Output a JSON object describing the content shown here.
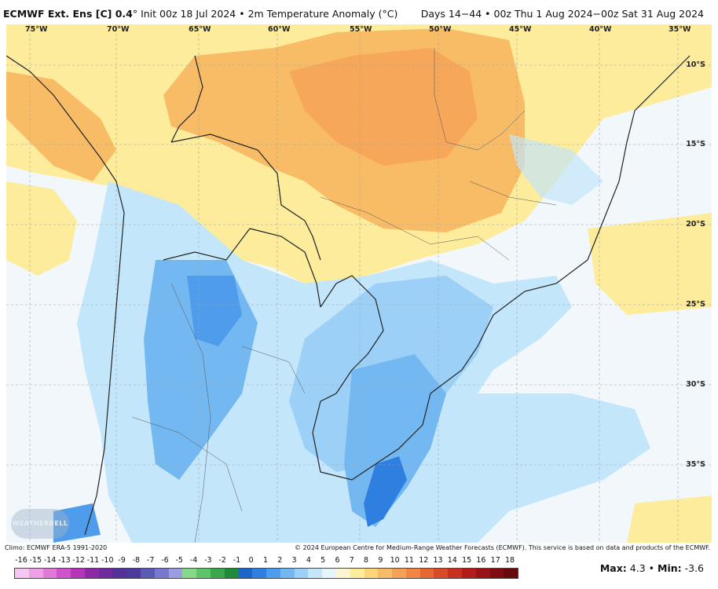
{
  "header": {
    "model": "ECMWF Ext. Ens [C] 0.4",
    "degree": "°",
    "init": "Init 00z 18 Jul 2024",
    "sep": "•",
    "field": "2m Temperature Anomaly (°C)",
    "range": "Days 14−44 • 00z Thu 1 Aug 2024−00z Sat 31 Aug 2024"
  },
  "map": {
    "lon_labels": [
      "75°W",
      "70°W",
      "65°W",
      "60°W",
      "55°W",
      "50°W",
      "45°W",
      "40°W",
      "35°W"
    ],
    "lat_labels": [
      "10°S",
      "15°S",
      "20°S",
      "25°S",
      "30°S",
      "35°S"
    ],
    "logo_text": "WEATHERBELL"
  },
  "footer": {
    "climo": "Climo: ECMWF ERA-5 1991-2020",
    "credit": "© 2024 European Centre for Medium-Range Weather Forecasts (ECMWF). This service is based on data and products of the ECMWF."
  },
  "scale": {
    "ticks": [
      "-16",
      "-15",
      "-14",
      "-13",
      "-12",
      "-11",
      "-10",
      "-9",
      "-8",
      "-7",
      "-6",
      "-5",
      "-4",
      "-3",
      "-2",
      "-1",
      "0",
      "1",
      "2",
      "3",
      "4",
      "5",
      "6",
      "7",
      "8",
      "9",
      "10",
      "11",
      "12",
      "13",
      "14",
      "15",
      "16",
      "17",
      "18"
    ],
    "colors": [
      "#f7c6f0",
      "#ee9fe6",
      "#e07ad9",
      "#cf53cb",
      "#b436b8",
      "#8e2aa6",
      "#6f2a9e",
      "#54309a",
      "#4a3a9e",
      "#5a5ab4",
      "#7878cc",
      "#9c9ce0",
      "#86d98a",
      "#5fc468",
      "#3aa84a",
      "#218a3a",
      "#1c66c8",
      "#2f7fe0",
      "#4f9cec",
      "#74b8f2",
      "#9cd0f6",
      "#c4e6fa",
      "#e8f4fc",
      "#fbf6d2",
      "#fcec9c",
      "#fbd577",
      "#f8bc66",
      "#f6a158",
      "#f08544",
      "#e56834",
      "#d84b28",
      "#c8301f",
      "#b31b1a",
      "#9a1216",
      "#7e0c12",
      "#660a10"
    ],
    "stats_max_label": "Max:",
    "stats_max": "4.3",
    "stats_min_label": "Min:",
    "stats_min": "-3.6",
    "stats_sep": "•"
  },
  "colors": {
    "warm_light": "#fcec9c",
    "warm_mid": "#f8bc66",
    "warm_strong": "#f08544",
    "cool_light": "#c4e6fa",
    "cool_mid": "#74b8f2",
    "cool_strong": "#2f7fe0"
  }
}
